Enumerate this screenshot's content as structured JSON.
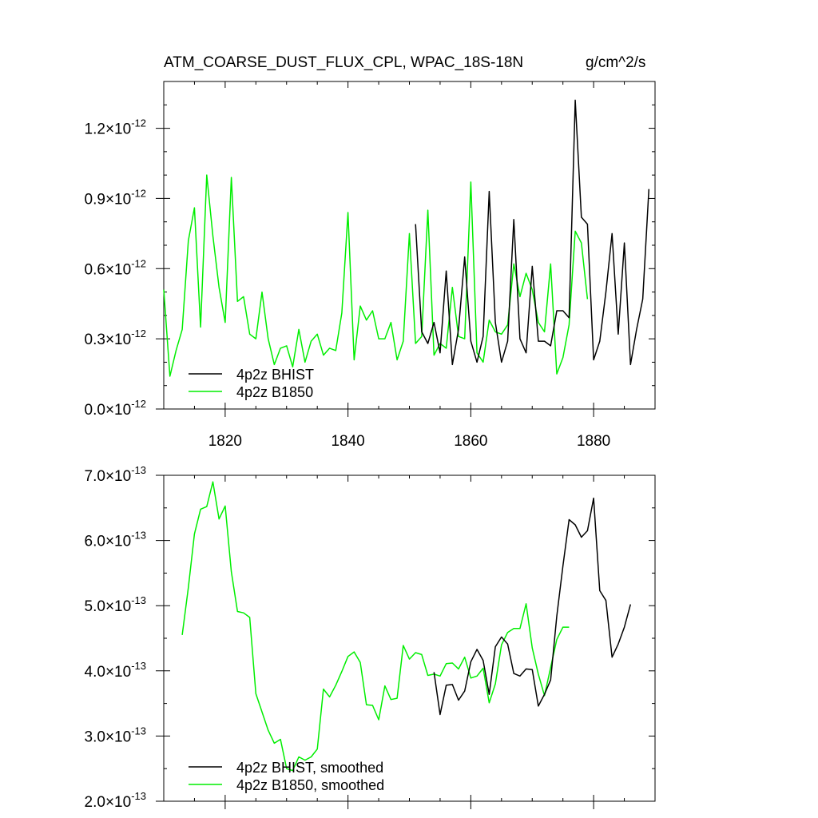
{
  "title": {
    "main": "ATM_COARSE_DUST_FLUX_CPL, WPAC_18S-18N",
    "units": "g/cm^2/s"
  },
  "colors": {
    "bhist": "#000000",
    "b1850": "#00ee00"
  },
  "chart_data": [
    {
      "type": "line",
      "panel": "top",
      "xlim": [
        1810,
        1890
      ],
      "ylim": [
        0,
        1.4
      ],
      "y_multiplier": "10^-12",
      "xticks": [
        1820,
        1840,
        1860,
        1880
      ],
      "xtick_labels": [
        "1820",
        "1840",
        "1860",
        "1880"
      ],
      "yticks": [
        0,
        0.3,
        0.6,
        0.9,
        1.2
      ],
      "ytick_labels": [
        {
          "mantissa": "0.0",
          "exp": "-12"
        },
        {
          "mantissa": "0.3",
          "exp": "-12"
        },
        {
          "mantissa": "0.6",
          "exp": "-12"
        },
        {
          "mantissa": "0.9",
          "exp": "-12"
        },
        {
          "mantissa": "1.2",
          "exp": "-12"
        }
      ],
      "legend_position": "bottom-left",
      "series": [
        {
          "name": "4p2z BHIST",
          "color": "#000000",
          "x": [
            1851,
            1852,
            1853,
            1854,
            1855,
            1856,
            1857,
            1858,
            1859,
            1860,
            1861,
            1862,
            1863,
            1864,
            1865,
            1866,
            1867,
            1868,
            1869,
            1870,
            1871,
            1872,
            1873,
            1874,
            1875,
            1876,
            1877,
            1878,
            1879,
            1880,
            1881,
            1882,
            1883,
            1884,
            1885,
            1886,
            1887,
            1888,
            1889
          ],
          "values": [
            0.79,
            0.33,
            0.28,
            0.37,
            0.24,
            0.59,
            0.19,
            0.34,
            0.65,
            0.29,
            0.2,
            0.31,
            0.93,
            0.37,
            0.2,
            0.29,
            0.81,
            0.3,
            0.24,
            0.61,
            0.29,
            0.29,
            0.27,
            0.42,
            0.42,
            0.39,
            1.32,
            0.82,
            0.79,
            0.21,
            0.29,
            0.5,
            0.75,
            0.32,
            0.71,
            0.19,
            0.34,
            0.47,
            0.94
          ]
        },
        {
          "name": "4p2z B1850",
          "color": "#00ee00",
          "x": [
            1810,
            1811,
            1812,
            1813,
            1814,
            1815,
            1816,
            1817,
            1818,
            1819,
            1820,
            1821,
            1822,
            1823,
            1824,
            1825,
            1826,
            1827,
            1828,
            1829,
            1830,
            1831,
            1832,
            1833,
            1834,
            1835,
            1836,
            1837,
            1838,
            1839,
            1840,
            1841,
            1842,
            1843,
            1844,
            1845,
            1846,
            1847,
            1848,
            1849,
            1850,
            1851,
            1852,
            1853,
            1854,
            1855,
            1856,
            1857,
            1858,
            1859,
            1860,
            1861,
            1862,
            1863,
            1864,
            1865,
            1866,
            1867,
            1868,
            1869,
            1870,
            1871,
            1872,
            1873,
            1874,
            1875,
            1876,
            1877,
            1878,
            1879
          ],
          "values": [
            0.51,
            0.14,
            0.25,
            0.34,
            0.72,
            0.86,
            0.35,
            1.0,
            0.74,
            0.52,
            0.37,
            0.99,
            0.46,
            0.48,
            0.32,
            0.3,
            0.5,
            0.3,
            0.19,
            0.26,
            0.27,
            0.18,
            0.34,
            0.2,
            0.29,
            0.32,
            0.23,
            0.26,
            0.25,
            0.41,
            0.84,
            0.21,
            0.44,
            0.38,
            0.42,
            0.3,
            0.3,
            0.37,
            0.21,
            0.29,
            0.75,
            0.28,
            0.31,
            0.85,
            0.23,
            0.28,
            0.26,
            0.52,
            0.31,
            0.3,
            0.97,
            0.24,
            0.2,
            0.38,
            0.33,
            0.32,
            0.36,
            0.62,
            0.48,
            0.58,
            0.51,
            0.37,
            0.33,
            0.62,
            0.15,
            0.22,
            0.36,
            0.76,
            0.71,
            0.47
          ]
        }
      ]
    },
    {
      "type": "line",
      "panel": "bottom",
      "xlim": [
        1810,
        1890
      ],
      "ylim": [
        2.0,
        7.0
      ],
      "y_multiplier": "10^-13",
      "xticks": [
        1820,
        1840,
        1860,
        1880
      ],
      "yticks": [
        2,
        3,
        4,
        5,
        6,
        7
      ],
      "ytick_labels": [
        {
          "mantissa": "2.0",
          "exp": "-13"
        },
        {
          "mantissa": "3.0",
          "exp": "-13"
        },
        {
          "mantissa": "4.0",
          "exp": "-13"
        },
        {
          "mantissa": "5.0",
          "exp": "-13"
        },
        {
          "mantissa": "6.0",
          "exp": "-13"
        },
        {
          "mantissa": "7.0",
          "exp": "-13"
        }
      ],
      "legend_position": "bottom-left",
      "series": [
        {
          "name": "4p2z BHIST, smoothed",
          "color": "#000000",
          "x": [
            1854,
            1855,
            1856,
            1857,
            1858,
            1859,
            1860,
            1861,
            1862,
            1863,
            1864,
            1865,
            1866,
            1867,
            1868,
            1869,
            1870,
            1871,
            1872,
            1873,
            1874,
            1875,
            1876,
            1877,
            1878,
            1879,
            1880,
            1881,
            1882,
            1883,
            1884,
            1885,
            1886
          ],
          "values": [
            3.98,
            3.33,
            3.78,
            3.79,
            3.55,
            3.69,
            4.14,
            4.33,
            4.16,
            3.64,
            4.37,
            4.52,
            4.41,
            3.96,
            3.92,
            4.03,
            4.02,
            3.46,
            3.64,
            3.86,
            4.84,
            5.61,
            6.32,
            6.24,
            6.05,
            6.15,
            6.65,
            5.23,
            5.08,
            4.21,
            4.41,
            4.67,
            5.02
          ]
        },
        {
          "name": "4p2z B1850, smoothed",
          "color": "#00ee00",
          "x": [
            1813,
            1814,
            1815,
            1816,
            1817,
            1818,
            1819,
            1820,
            1821,
            1822,
            1823,
            1824,
            1825,
            1826,
            1827,
            1828,
            1829,
            1830,
            1831,
            1832,
            1833,
            1834,
            1835,
            1836,
            1837,
            1838,
            1839,
            1840,
            1841,
            1842,
            1843,
            1844,
            1845,
            1846,
            1847,
            1848,
            1849,
            1850,
            1851,
            1852,
            1853,
            1854,
            1855,
            1856,
            1857,
            1858,
            1859,
            1860,
            1861,
            1862,
            1863,
            1864,
            1865,
            1866,
            1867,
            1868,
            1869,
            1870,
            1871,
            1872,
            1873,
            1874,
            1875,
            1876
          ],
          "values": [
            4.55,
            5.28,
            6.1,
            6.48,
            6.52,
            6.9,
            6.33,
            6.53,
            5.52,
            4.91,
            4.89,
            4.82,
            3.65,
            3.37,
            3.09,
            2.89,
            2.95,
            2.5,
            2.47,
            2.68,
            2.63,
            2.68,
            2.8,
            3.72,
            3.6,
            3.78,
            3.99,
            4.22,
            4.29,
            4.13,
            3.48,
            3.47,
            3.25,
            3.77,
            3.56,
            3.58,
            4.39,
            4.18,
            4.28,
            4.25,
            3.93,
            3.95,
            3.92,
            4.11,
            4.12,
            4.03,
            4.21,
            3.89,
            3.92,
            4.04,
            3.51,
            3.8,
            4.4,
            4.59,
            4.65,
            4.65,
            5.03,
            4.35,
            3.95,
            3.62,
            4.05,
            4.48,
            4.67,
            4.67
          ]
        }
      ]
    }
  ]
}
